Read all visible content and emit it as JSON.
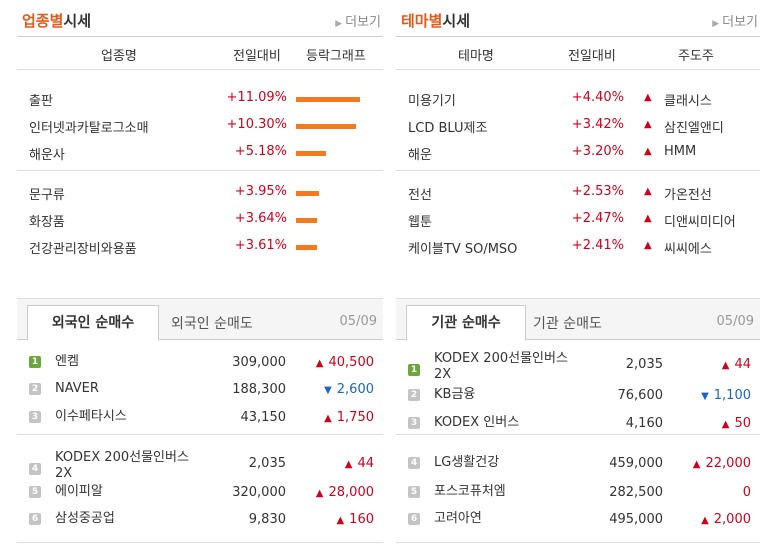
{
  "sector": {
    "title_accent": "업종별",
    "title_rest": "시세",
    "more": "더보기",
    "headers": [
      "업종명",
      "전일대비",
      "등락그래프"
    ],
    "rows": [
      {
        "name": "출판",
        "change": "+11.09%",
        "level": 1.0
      },
      {
        "name": "인터넷과카탈로그소매",
        "change": "+10.30%",
        "level": 0.93
      },
      {
        "name": "해운사",
        "change": "+5.18%",
        "level": 0.47
      },
      {
        "name": "문구류",
        "change": "+3.95%",
        "level": 0.36
      },
      {
        "name": "화장품",
        "change": "+3.64%",
        "level": 0.33
      },
      {
        "name": "건강관리장비와용품",
        "change": "+3.61%",
        "level": 0.33
      }
    ]
  },
  "theme": {
    "title_accent": "테마별",
    "title_rest": "시세",
    "more": "더보기",
    "headers": [
      "테마명",
      "전일대비",
      "주도주"
    ],
    "rows": [
      {
        "name": "미용기기",
        "change": "+4.40%",
        "leader": "클래시스"
      },
      {
        "name": "LCD BLU제조",
        "change": "+3.42%",
        "leader": "삼진엘앤디"
      },
      {
        "name": "해운",
        "change": "+3.20%",
        "leader": "HMM"
      },
      {
        "name": "전선",
        "change": "+2.53%",
        "leader": "가온전선"
      },
      {
        "name": "웹툰",
        "change": "+2.47%",
        "leader": "디앤씨미디어"
      },
      {
        "name": "케이블TV SO/MSO",
        "change": "+2.41%",
        "leader": "씨씨에스"
      }
    ]
  },
  "foreign": {
    "tab_active": "외국인 순매수",
    "tab_other": "외국인 순매도",
    "date": "05/09",
    "rows": [
      {
        "rank": "1",
        "name": "엔켐",
        "price": "309,000",
        "dir": "up",
        "qty": "40,500"
      },
      {
        "rank": "2",
        "name": "NAVER",
        "price": "188,300",
        "dir": "down",
        "qty": "2,600"
      },
      {
        "rank": "3",
        "name": "이수페타시스",
        "price": "43,150",
        "dir": "up",
        "qty": "1,750"
      },
      {
        "rank": "4",
        "name": "KODEX 200선물인버스2X",
        "price": "2,035",
        "dir": "up",
        "qty": "44"
      },
      {
        "rank": "5",
        "name": "에이피알",
        "price": "320,000",
        "dir": "up",
        "qty": "28,000"
      },
      {
        "rank": "6",
        "name": "삼성중공업",
        "price": "9,830",
        "dir": "up",
        "qty": "160"
      }
    ]
  },
  "institution": {
    "tab_active": "기관 순매수",
    "tab_other": "기관 순매도",
    "date": "05/09",
    "rows": [
      {
        "rank": "1",
        "name": "KODEX 200선물인버스2X",
        "price": "2,035",
        "dir": "up",
        "qty": "44"
      },
      {
        "rank": "2",
        "name": "KB금융",
        "price": "76,600",
        "dir": "down",
        "qty": "1,100"
      },
      {
        "rank": "3",
        "name": "KODEX 인버스",
        "price": "4,160",
        "dir": "up",
        "qty": "50"
      },
      {
        "rank": "4",
        "name": "LG생활건강",
        "price": "459,000",
        "dir": "up",
        "qty": "22,000"
      },
      {
        "rank": "5",
        "name": "포스코퓨처엠",
        "price": "282,500",
        "dir": "none",
        "qty": "0"
      },
      {
        "rank": "6",
        "name": "고려아연",
        "price": "495,000",
        "dir": "up",
        "qty": "2,000"
      }
    ],
    "colors": {
      "up": "#d0021b",
      "down": "#1b64c8",
      "bar": "#f47a20",
      "accent": "#e35b1b",
      "rank_first": "#6aa73c"
    }
  }
}
